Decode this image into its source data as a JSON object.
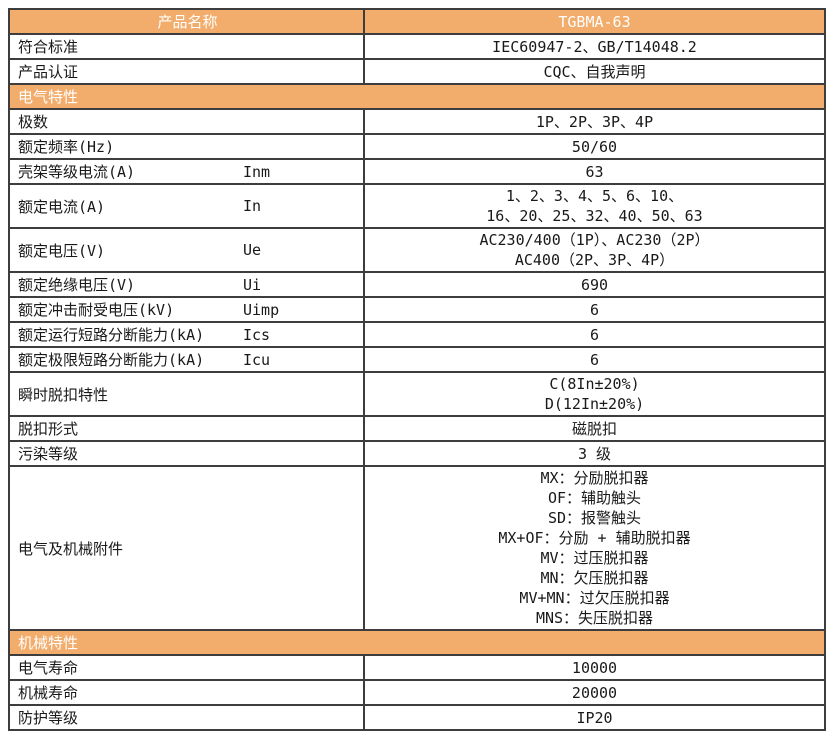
{
  "colors": {
    "accent_orange": "#F2AC6B",
    "border": "#3d3d3d",
    "header_text": "#ffffff",
    "body_text": "#191919"
  },
  "table": {
    "rows": [
      {
        "type": "header",
        "label": "产品名称",
        "symbol": "",
        "value_lines": [
          "TGBMA-63"
        ]
      },
      {
        "type": "row",
        "label": "符合标准",
        "symbol": "",
        "value_lines": [
          "IEC60947-2、GB/T14048.2"
        ]
      },
      {
        "type": "row",
        "label": "产品认证",
        "symbol": "",
        "value_lines": [
          "CQC、自我声明"
        ]
      },
      {
        "type": "section",
        "label": "电气特性"
      },
      {
        "type": "row",
        "label": "极数",
        "symbol": "",
        "value_lines": [
          "1P、2P、3P、4P"
        ]
      },
      {
        "type": "row",
        "label": "额定频率(Hz)",
        "symbol": "",
        "value_lines": [
          "50/60"
        ]
      },
      {
        "type": "row",
        "label": "壳架等级电流(A)",
        "symbol": "Inm",
        "value_lines": [
          "63"
        ]
      },
      {
        "type": "row",
        "label": "额定电流(A)",
        "symbol": "In",
        "value_lines": [
          "1、2、3、4、5、6、10、",
          "16、20、25、32、40、50、63"
        ]
      },
      {
        "type": "row",
        "label": "额定电压(V)",
        "symbol": "Ue",
        "value_lines": [
          "AC230/400（1P）、AC230（2P）",
          "AC400（2P、3P、4P）"
        ]
      },
      {
        "type": "row",
        "label": "额定绝缘电压(V)",
        "symbol": "Ui",
        "value_lines": [
          "690"
        ]
      },
      {
        "type": "row",
        "label": "额定冲击耐受电压(kV)",
        "symbol": "Uimp",
        "value_lines": [
          "6"
        ]
      },
      {
        "type": "row",
        "label": "额定运行短路分断能力(kA)",
        "symbol": "Ics",
        "value_lines": [
          "6"
        ]
      },
      {
        "type": "row",
        "label": "额定极限短路分断能力(kA)",
        "symbol": "Icu",
        "value_lines": [
          "6"
        ]
      },
      {
        "type": "row",
        "label": "瞬时脱扣特性",
        "symbol": "",
        "value_lines": [
          "C(8In±20%)",
          "D(12In±20%)"
        ]
      },
      {
        "type": "row",
        "label": "脱扣形式",
        "symbol": "",
        "value_lines": [
          "磁脱扣"
        ]
      },
      {
        "type": "row",
        "label": "污染等级",
        "symbol": "",
        "value_lines": [
          "3 级"
        ]
      },
      {
        "type": "row",
        "label": "电气及机械附件",
        "symbol": "",
        "value_lines": [
          "MX：分励脱扣器",
          "OF：辅助触头",
          "SD：报警触头",
          "MX+OF：分励 + 辅助脱扣器",
          "MV：过压脱扣器",
          "MN：欠压脱扣器",
          "MV+MN：过欠压脱扣器",
          "MNS：失压脱扣器"
        ]
      },
      {
        "type": "section",
        "label": "机械特性"
      },
      {
        "type": "row",
        "label": "电气寿命",
        "symbol": "",
        "value_lines": [
          "10000"
        ]
      },
      {
        "type": "row",
        "label": "机械寿命",
        "symbol": "",
        "value_lines": [
          "20000"
        ]
      },
      {
        "type": "row",
        "label": "防护等级",
        "symbol": "",
        "value_lines": [
          "IP20"
        ]
      }
    ]
  }
}
